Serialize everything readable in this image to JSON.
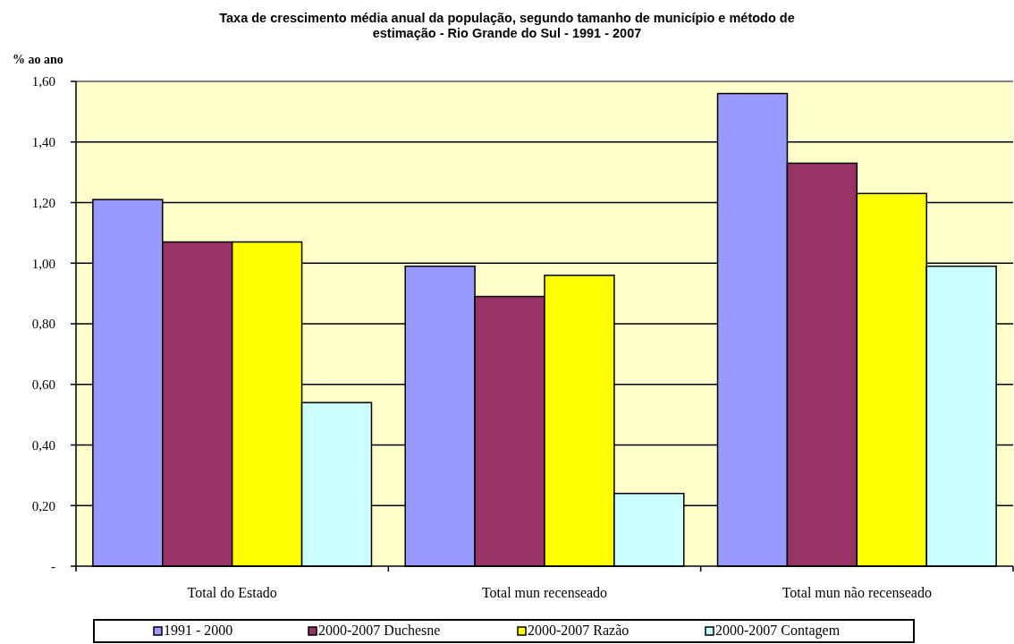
{
  "chart_data": {
    "type": "bar",
    "title": "Taxa de crescimento média anual da população, segundo tamanho de município e método de estimação - Rio Grande do Sul - 1991 - 2007",
    "ylabel": "% ao ano",
    "categories": [
      "Total do Estado",
      "Total mun recenseado",
      "Total mun não recenseado"
    ],
    "series": [
      {
        "name": "1991 - 2000",
        "color": "#9999ff",
        "values": [
          1.21,
          0.99,
          1.56
        ]
      },
      {
        "name": "2000-2007 Duchesne",
        "color": "#993366",
        "values": [
          1.07,
          0.89,
          1.33
        ]
      },
      {
        "name": "2000-2007 Razão",
        "color": "#ffff00",
        "values": [
          1.07,
          0.96,
          1.23
        ]
      },
      {
        "name": "2000-2007 Contagem",
        "color": "#ccffff",
        "values": [
          0.54,
          0.24,
          0.99
        ]
      }
    ],
    "ylim": [
      0,
      1.6
    ],
    "yticks": [
      {
        "value": 0,
        "label": "-"
      },
      {
        "value": 0.2,
        "label": "0,20"
      },
      {
        "value": 0.4,
        "label": "0,40"
      },
      {
        "value": 0.6,
        "label": "0,60"
      },
      {
        "value": 0.8,
        "label": "0,80"
      },
      {
        "value": 1,
        "label": "1,00"
      },
      {
        "value": 1.2,
        "label": "1,20"
      },
      {
        "value": 1.4,
        "label": "1,40"
      },
      {
        "value": 1.6,
        "label": "1,60"
      }
    ],
    "grid": "y",
    "legend": "bottom"
  }
}
